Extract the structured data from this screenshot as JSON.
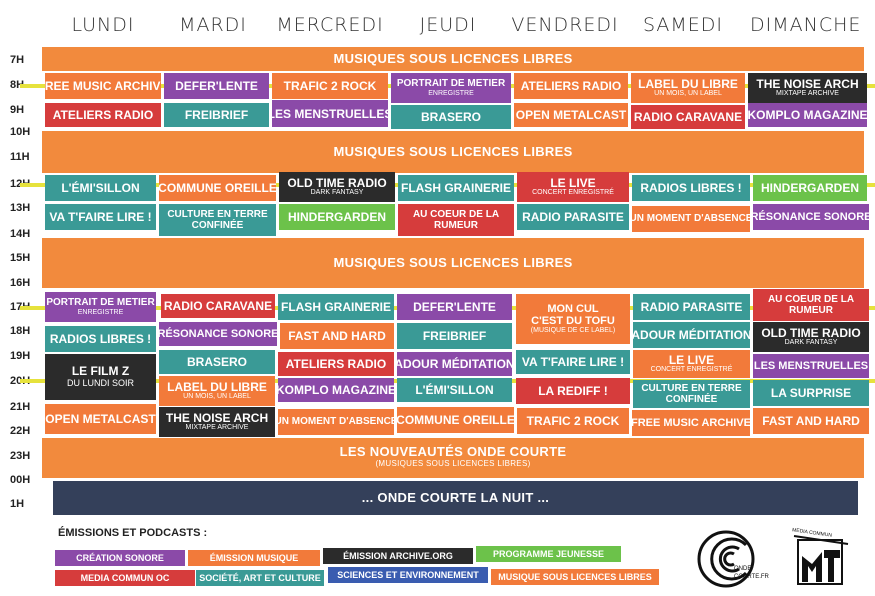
{
  "days": [
    "LUNDI",
    "MARDI",
    "MERCREDI",
    "JEUDI",
    "VENDREDI",
    "SAMEDI",
    "DIMANCHE"
  ],
  "hours": [
    "7H",
    "8H",
    "9H",
    "10H",
    "11H",
    "12H",
    "13H",
    "14H",
    "15H",
    "16H",
    "17H",
    "18H",
    "19H",
    "20H",
    "21H",
    "22H",
    "23H",
    "00H",
    "1H"
  ],
  "bands": {
    "band1": "MUSIQUES SOUS LICENCES LIBRES",
    "band2": "MUSIQUES SOUS LICENCES LIBRES",
    "band3": "MUSIQUES SOUS LICENCES LIBRES",
    "nouveautes": "LES NOUVEAUTÉS ONDE COURTE",
    "nouveautes_sub": "(MUSIQUES SOUS LICENCES LIBRES)",
    "nuit": "... ONDE COURTE LA NUIT ..."
  },
  "cells": {
    "r1": [
      "FREE MUSIC ARCHIVE",
      "DEFER'LENTE",
      "TRAFIC 2 ROCK",
      "PORTRAIT DE METIER",
      "ATELIERS RADIO",
      "LABEL DU LIBRE",
      "THE NOISE ARCH"
    ],
    "r1_sub": {
      "jeudi": "ENREGISTRE",
      "samedi": "UN MOIS, UN LABEL",
      "dimanche": "MIXTAPE ARCHIVE"
    },
    "r2": [
      "ATELIERS RADIO",
      "FREIBRIEF",
      "LES MENSTRUELLES",
      "BRASERO",
      "OPEN METALCAST",
      "RADIO CARAVANE",
      "KOMPLO MAGAZINE"
    ],
    "r3": [
      "L'ÉMI'SILLON",
      "COMMUNE OREILLE",
      "OLD TIME RADIO",
      "FLASH GRAINERIE",
      "LE LIVE",
      "RADIOS LIBRES !",
      "HINDERGARDEN"
    ],
    "r3_sub": {
      "mercredi": "DARK FANTASY",
      "vendredi": "CONCERT ENREGISTRÉ"
    },
    "r4": [
      "VA T'FAIRE LIRE !",
      "CULTURE EN TERRE",
      "HINDERGARDEN",
      "AU COEUR DE LA",
      "RADIO PARASITE",
      "UN MOMENT D'ABSENCE",
      "RÉSONANCE SONORE"
    ],
    "r4_line2": {
      "mardi": "CONFINÉE",
      "jeudi": "RUMEUR"
    },
    "r5": [
      "PORTRAIT DE METIER",
      "RADIO CARAVANE",
      "FLASH GRAINERIE",
      "DEFER'LENTE",
      "MON CUL",
      "RADIO PARASITE",
      "AU COEUR DE LA"
    ],
    "r5_sub": {
      "lundi": "ENREGISTRE"
    },
    "r5_line2": {
      "vendredi": "C'EST DU TOFU",
      "dimanche": "RUMEUR"
    },
    "r5_vendredi_sub": "(MUSIQUE DE CE LABEL)",
    "r6": [
      "RADIOS LIBRES !",
      "RÉSONANCE SONORE",
      "FAST AND HARD",
      "FREIBRIEF",
      "ADOUR MÉDITATION",
      "OLD TIME RADIO"
    ],
    "r6_sub": {
      "dimanche": "DARK FANTASY"
    },
    "r7": [
      "LE FILM Z",
      "BRASERO",
      "ATELIERS RADIO",
      "ADOUR MÉDITATION",
      "VA T'FAIRE LIRE !",
      "LE LIVE",
      "LES MENSTRUELLES"
    ],
    "r7_sub": {
      "lundi": "DU LUNDI SOIR",
      "samedi": "CONCERT ENREGISTRÉ"
    },
    "r8": [
      "LABEL DU LIBRE",
      "KOMPLO MAGAZINE",
      "L'ÉMI'SILLON",
      "LA REDIFF !",
      "CULTURE EN TERRE",
      "LA SURPRISE"
    ],
    "r8_sub": {
      "mardi": "UN MOIS, UN LABEL"
    },
    "r8_line2": {
      "samedi": "CONFINÉE"
    },
    "r9": [
      "OPEN METALCAST",
      "THE NOISE ARCH",
      "UN MOMENT D'ABSENCE",
      "COMMUNE OREILLE",
      "TRAFIC 2 ROCK",
      "FREE MUSIC ARCHIVE",
      "FAST AND HARD"
    ],
    "r9_sub": {
      "mardi": "MIXTAPE ARCHIVE"
    }
  },
  "legend": {
    "title": "ÉMISSIONS ET PODCASTS :",
    "items": [
      "CRÉATION SONORE",
      "ÉMISSION MUSIQUE",
      "ÉMISSION ARCHIVE.ORG",
      "PROGRAMME JEUNESSE",
      "MEDIA COMMUN OC",
      "SOCIÉTÉ, ART ET CULTURE",
      "SCIENCES ET ENVIRONNEMENT",
      "MUSIQUE SOUS LICENCES LIBRES"
    ]
  },
  "logos": {
    "onde": "ONDE COURTE.FR",
    "media": "MEDIA COMMUN"
  },
  "colors": {
    "orange": "#f28a3d",
    "purple": "#8b4aa8",
    "dark": "#2b2b2b",
    "green": "#6cc24a",
    "red": "#d63c3c",
    "teal": "#3a9a96",
    "blue": "#3a5cb0",
    "navy": "#34405a",
    "yellow": "#e6e23c"
  }
}
